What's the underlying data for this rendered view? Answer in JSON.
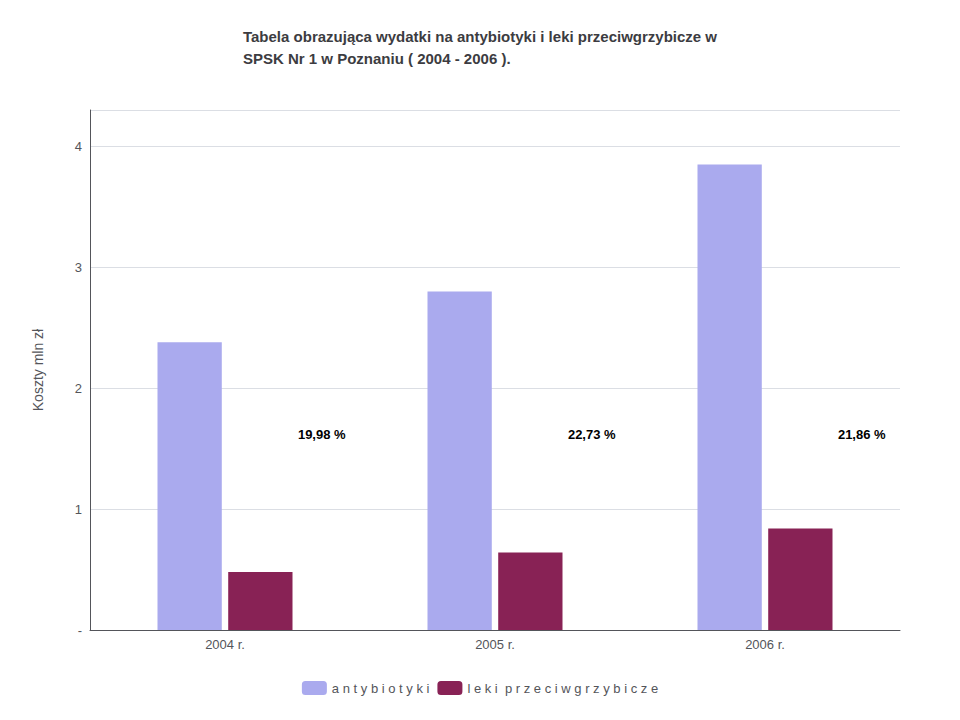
{
  "chart_data": {
    "type": "bar",
    "title": "Tabela obrazująca wydatki na antybiotyki i leki przeciwgrzybicze w\nSPSK Nr 1 w Poznaniu ( 2004 - 2006 ).",
    "categories": [
      "2004 r.",
      "2005 r.",
      "2006 r."
    ],
    "series": [
      {
        "name": "a n t y b i o t y k i",
        "color": "#aaaaee",
        "values": [
          2.38,
          2.8,
          3.85
        ]
      },
      {
        "name": "l e k i  p r z e c i w g r z y b i c z e",
        "color": "#882255",
        "values": [
          0.48,
          0.64,
          0.84
        ]
      }
    ],
    "ylabel": "Koszty mln zł",
    "ylim": [
      0,
      4.3
    ],
    "yticks": [
      {
        "value": 0,
        "label": "-"
      },
      1,
      2,
      3,
      4
    ],
    "grid": true,
    "legend": "bottom",
    "annotations": [
      {
        "text": "19,98 %",
        "x": "2004 r.",
        "y": 1.62
      },
      {
        "text": "22,73 %",
        "x": "2005 r.",
        "y": 1.62
      },
      {
        "text": "21,86 %",
        "x": "2006 r.",
        "y": 1.62
      }
    ]
  }
}
